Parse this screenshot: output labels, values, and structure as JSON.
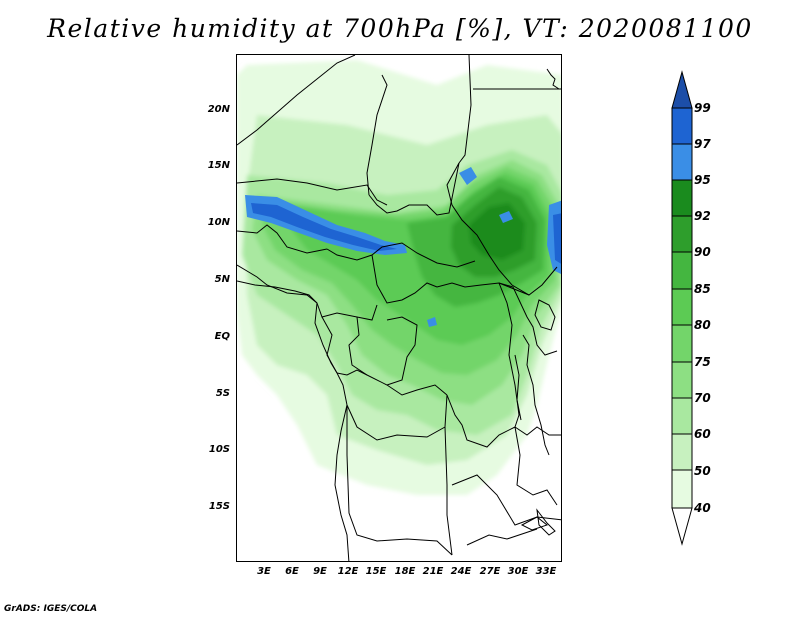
{
  "title": "Relative humidity at 700hPa [%], VT: 2020081100",
  "footer": "GrADS: IGES/COLA",
  "map": {
    "y_axis_labels": [
      "20N",
      "15N",
      "10N",
      "5N",
      "EQ",
      "5S",
      "10S",
      "15S"
    ],
    "x_axis_labels": [
      "3E",
      "6E",
      "9E",
      "12E",
      "15E",
      "18E",
      "21E",
      "24E",
      "27E",
      "30E",
      "33E"
    ]
  },
  "colorbar": {
    "levels": [
      "99",
      "97",
      "95",
      "92",
      "90",
      "85",
      "80",
      "75",
      "70",
      "60",
      "50",
      "40"
    ],
    "colors": {
      "c40": "#ffffff",
      "c50": "#e6fbe1",
      "c60": "#c7f1bf",
      "c70": "#a9e8a0",
      "c75": "#8ddf83",
      "c80": "#73d56a",
      "c85": "#5ccb54",
      "c90": "#44b640",
      "c92": "#2e9e2c",
      "c95": "#1a8b1e",
      "c97": "#3a8ee6",
      "c99": "#1e64d2",
      "top": "#1c4ea8"
    }
  }
}
